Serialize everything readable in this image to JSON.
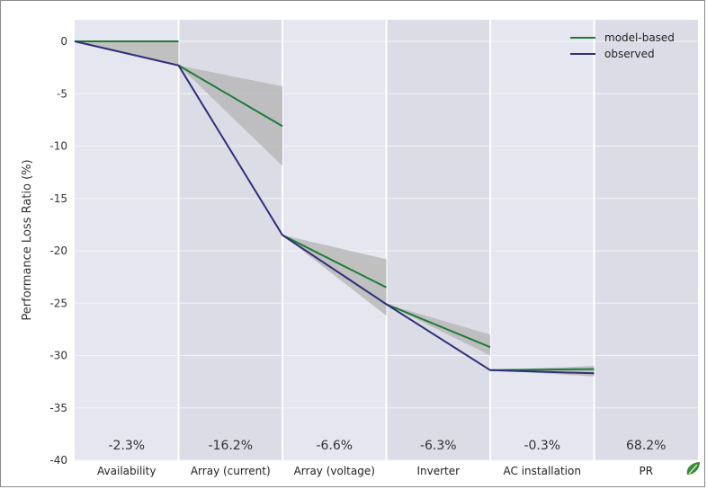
{
  "chart_data": {
    "type": "line",
    "ylabel": "Performance Loss Ratio (%)",
    "xlabel": "",
    "title": "",
    "ylim": [
      -40,
      2
    ],
    "yticks": [
      0,
      -5,
      -10,
      -15,
      -20,
      -25,
      -30,
      -35,
      -40
    ],
    "grid": true,
    "legend_position": "top-right",
    "categories": [
      "Availability",
      "Array (current)",
      "Array (voltage)",
      "Inverter",
      "AC installation",
      "PR"
    ],
    "bar_labels": [
      "-2.3%",
      "-16.2%",
      "-6.6%",
      "-6.3%",
      "-0.3%",
      "68.2%"
    ],
    "series": [
      {
        "name": "model-based",
        "color": "#1f7a3a",
        "segments": [
          [
            [
              0,
              0
            ],
            [
              1,
              0
            ]
          ],
          [
            [
              1,
              -2.3
            ],
            [
              2,
              -8.1
            ]
          ],
          [
            [
              2,
              -18.5
            ],
            [
              3,
              -23.5
            ]
          ],
          [
            [
              3,
              -25.1
            ],
            [
              4,
              -29.2
            ]
          ],
          [
            [
              4,
              -31.4
            ],
            [
              5,
              -31.3
            ]
          ]
        ]
      },
      {
        "name": "observed",
        "color": "#2f2f7a",
        "points": [
          [
            0,
            0
          ],
          [
            1,
            -2.3
          ],
          [
            2,
            -18.5
          ],
          [
            3,
            -25.1
          ],
          [
            4,
            -31.4
          ],
          [
            5,
            -31.7
          ]
        ]
      }
    ],
    "bands": [
      [
        [
          0,
          0,
          0
        ],
        [
          1,
          0,
          -2.3
        ]
      ],
      [
        [
          1,
          -2.3,
          -2.3
        ],
        [
          2,
          -4.3,
          -11.9
        ]
      ],
      [
        [
          2,
          -18.5,
          -18.5
        ],
        [
          3,
          -20.8,
          -26.2
        ]
      ],
      [
        [
          3,
          -25.1,
          -25.1
        ],
        [
          4,
          -28.0,
          -30.0
        ]
      ],
      [
        [
          4,
          -31.4,
          -31.4
        ],
        [
          5,
          -31.0,
          -32.0
        ]
      ]
    ]
  }
}
